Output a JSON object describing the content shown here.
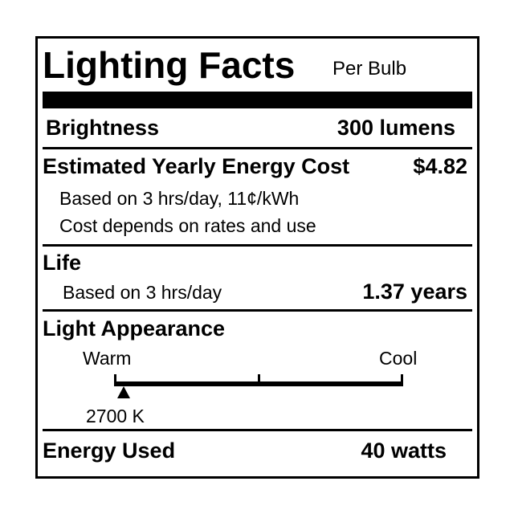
{
  "title": "Lighting Facts",
  "subtitle": "Per Bulb",
  "brightness": {
    "label": "Brightness",
    "value": "300 lumens"
  },
  "energy_cost": {
    "label": "Estimated Yearly Energy Cost",
    "value": "$4.82",
    "note1": "Based on 3 hrs/day, 11¢/kWh",
    "note2": "Cost depends on rates and use"
  },
  "life": {
    "label": "Life",
    "note": "Based on 3 hrs/day",
    "value": "1.37 years"
  },
  "light_appearance": {
    "label": "Light Appearance",
    "warm_label": "Warm",
    "cool_label": "Cool",
    "marker_label": "2700 K",
    "marker_position_fraction": 0.03
  },
  "energy_used": {
    "label": "Energy Used",
    "value": "40 watts"
  }
}
